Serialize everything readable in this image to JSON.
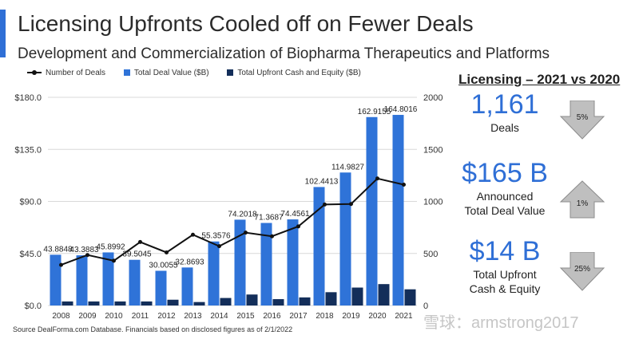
{
  "header": {
    "title": "Licensing Upfronts Cooled off on Fewer Deals",
    "subtitle": "Development and Commercialization of Biopharma Therapeutics and Platforms"
  },
  "legend": {
    "line_label": "Number of Deals",
    "total_label": "Total Deal Value ($B)",
    "upfront_label": "Total Upfront Cash and Equity ($B)"
  },
  "chart_data": {
    "type": "bar",
    "categories": [
      "2008",
      "2009",
      "2010",
      "2011",
      "2012",
      "2013",
      "2014",
      "2015",
      "2016",
      "2017",
      "2018",
      "2019",
      "2020",
      "2021"
    ],
    "series": [
      {
        "name": "Total Deal Value ($B)",
        "axis": "left",
        "color": "#2f73d8",
        "values": [
          43.8848,
          43.3883,
          45.8992,
          39.5045,
          30.0055,
          32.8693,
          55.3576,
          74.2018,
          71.3687,
          74.4561,
          102.4413,
          114.9827,
          162.9155,
          164.8016
        ],
        "labels": [
          "43.8848",
          "43.3883",
          "45.8992",
          "39.5045",
          "30.0055",
          "32.8693",
          "55.3576",
          "74.2018",
          "71.3687",
          "74.4561",
          "102.4413",
          "114.9827",
          "162.9155",
          "164.8016"
        ]
      },
      {
        "name": "Total Upfront Cash and Equity ($B)",
        "axis": "left",
        "color": "#132e5a",
        "values": [
          3.5,
          3.5,
          3.5,
          3.5,
          5,
          3,
          6.5,
          9.5,
          5.5,
          7,
          11.5,
          15.5,
          18.5,
          14
        ]
      },
      {
        "name": "Number of Deals",
        "axis": "right",
        "type": "line",
        "color": "#111111",
        "values": [
          390,
          485,
          430,
          610,
          510,
          680,
          570,
          700,
          665,
          760,
          970,
          975,
          1220,
          1161
        ]
      }
    ],
    "left_axis": {
      "min": 0,
      "max": 180,
      "ticks": [
        "$0.0",
        "$45.0",
        "$90.0",
        "$135.0",
        "$180.0"
      ]
    },
    "right_axis": {
      "min": 0,
      "max": 2000,
      "ticks": [
        "0",
        "500",
        "1000",
        "1500",
        "2000"
      ]
    },
    "grid": true,
    "legend_position": "top"
  },
  "panel": {
    "title": "Licensing – 2021 vs 2020",
    "stats": [
      {
        "value": "1,161",
        "label_lines": [
          "Deals"
        ],
        "change": "5%",
        "direction": "down"
      },
      {
        "value": "$165 B",
        "label_lines": [
          "Announced",
          "Total Deal Value"
        ],
        "change": "1%",
        "direction": "up"
      },
      {
        "value": "$14 B",
        "label_lines": [
          "Total Upfront",
          "Cash & Equity"
        ],
        "change": "25%",
        "direction": "down"
      }
    ]
  },
  "footer": {
    "source": "Source DealForma.com Database. Financials based on disclosed figures as of 2/1/2022",
    "watermark": "雪球：armstrong2017"
  },
  "colors": {
    "accent": "#2f6fd6",
    "total_bar": "#2f73d8",
    "upfront_bar": "#132e5a",
    "line": "#111111",
    "arrow": "#bfbfbf"
  }
}
